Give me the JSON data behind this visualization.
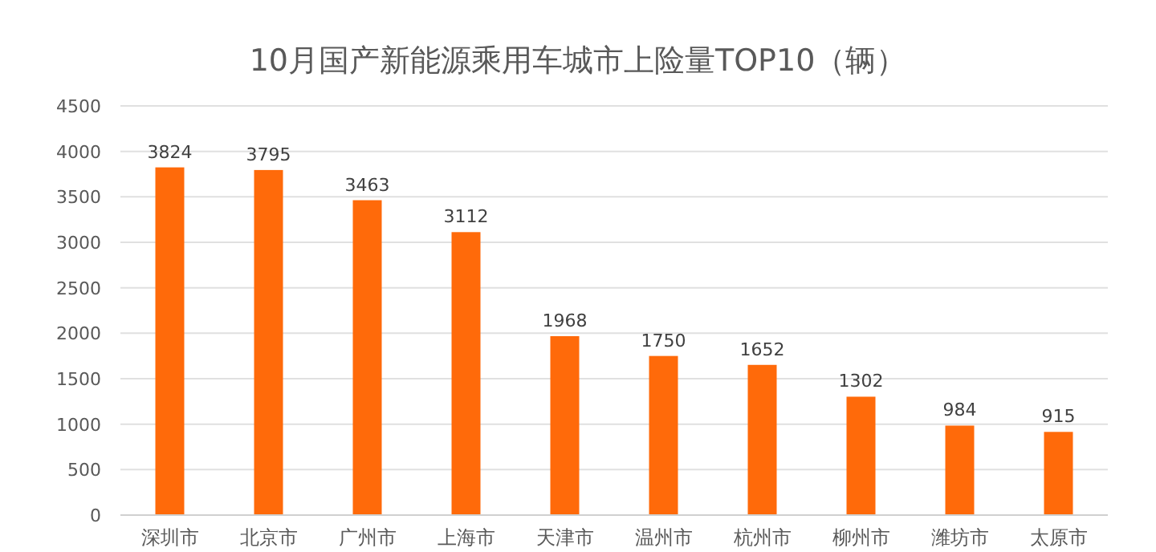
{
  "chart_data": {
    "type": "bar",
    "title": "10月国产新能源乘用车城市上险量TOP10（辆）",
    "categories": [
      "深圳市",
      "北京市",
      "广州市",
      "上海市",
      "天津市",
      "温州市",
      "杭州市",
      "柳州市",
      "潍坊市",
      "太原市"
    ],
    "values": [
      3824,
      3795,
      3463,
      3112,
      1968,
      1750,
      1652,
      1302,
      984,
      915
    ],
    "color": "#ff6a0a",
    "ylim": [
      0,
      4500
    ],
    "yticks": [
      0,
      500,
      1000,
      1500,
      2000,
      2500,
      3000,
      3500,
      4000,
      4500
    ],
    "grid": "y",
    "data_labels": true
  }
}
